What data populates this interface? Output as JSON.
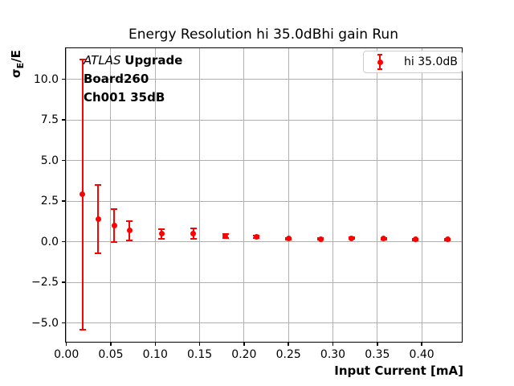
{
  "figure": {
    "title": "Energy Resolution hi 35.0dBhi gain Run",
    "xlabel": "Input Current [mA]",
    "ylabel_sigma": "σ",
    "ylabel_sub": "E",
    "ylabel_rest": "/E",
    "annotation": {
      "line1_italic": "ATLAS",
      "line1_bold": "Upgrade",
      "line2": "Board260",
      "line3": "Ch001 35dB"
    },
    "legend": {
      "label": "hi 35.0dB"
    }
  },
  "chart_data": {
    "type": "scatter",
    "title": "Energy Resolution hi 35.0dBhi gain Run",
    "xlabel": "Input Current [mA]",
    "ylabel": "σE/E",
    "grid": true,
    "grid_color": "#b0b0b0",
    "legend_position": "upper right",
    "xlim": [
      -0.0015,
      0.446
    ],
    "ylim": [
      -6.21,
      11.96
    ],
    "xticks": [
      0.0,
      0.05,
      0.1,
      0.15,
      0.2,
      0.25,
      0.3,
      0.35,
      0.4
    ],
    "xtick_labels": [
      "0.00",
      "0.05",
      "0.10",
      "0.15",
      "0.20",
      "0.25",
      "0.30",
      "0.35",
      "0.40"
    ],
    "yticks": [
      -5.0,
      -2.5,
      0.0,
      2.5,
      5.0,
      7.5,
      10.0
    ],
    "ytick_labels": [
      "−5.0",
      "−2.5",
      "0.0",
      "2.5",
      "5.0",
      "7.5",
      "10.0"
    ],
    "annotations": [
      "ATLAS Upgrade",
      "Board260",
      "Ch001 35dB"
    ],
    "series": [
      {
        "name": "hi 35.0dB",
        "color": "#ff0000",
        "marker": "circle-with-errorbars",
        "x": [
          0.018,
          0.036,
          0.054,
          0.071,
          0.107,
          0.143,
          0.179,
          0.214,
          0.25,
          0.286,
          0.321,
          0.357,
          0.393,
          0.429
        ],
        "y": [
          2.9,
          1.4,
          1.0,
          0.68,
          0.49,
          0.5,
          0.37,
          0.29,
          0.2,
          0.16,
          0.21,
          0.19,
          0.13,
          0.13
        ],
        "yerr": [
          8.3,
          2.1,
          1.0,
          0.58,
          0.29,
          0.33,
          0.12,
          0.08,
          0.05,
          0.05,
          0.05,
          0.05,
          0.04,
          0.04
        ]
      }
    ]
  }
}
